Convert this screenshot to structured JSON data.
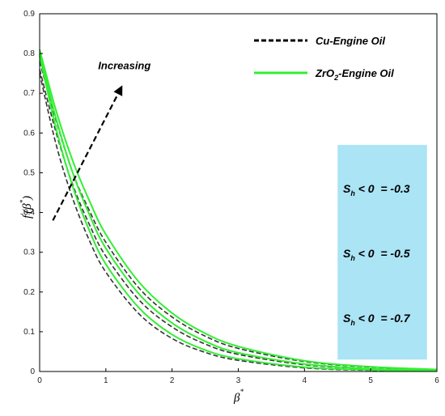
{
  "chart_data": {
    "type": "line",
    "x_range": [
      0,
      6
    ],
    "y_range": [
      0,
      0.9
    ],
    "x_ticks": [
      "0",
      "1",
      "2",
      "3",
      "4",
      "5",
      "6"
    ],
    "y_ticks": [
      "0",
      "0.1",
      "0.2",
      "0.3",
      "0.4",
      "0.5",
      "0.6",
      "0.7",
      "0.8",
      "0.9"
    ],
    "xlabel": "β",
    "xlabel_sup": "*",
    "ylabel": "f",
    "ylabel_prime": "'",
    "ylabel_open": "(β",
    "ylabel_sup": "*",
    "ylabel_close": ")",
    "grid": false,
    "legend": {
      "placement": "top-right",
      "entries": [
        {
          "label": "Cu-Engine Oil",
          "style": "dashed",
          "color": "#000000"
        },
        {
          "label_main": "ZrO",
          "label_sub": "2",
          "label_rest": "-Engine Oil",
          "style": "solid",
          "color": "#33ee33"
        }
      ]
    },
    "series": [
      {
        "group": "Cu-Engine Oil",
        "color": "#333333",
        "dash": true,
        "x": [
          0,
          0.25,
          0.5,
          0.75,
          1,
          1.5,
          2,
          2.5,
          3,
          4,
          5,
          6
        ],
        "y": [
          0.75,
          0.57,
          0.435,
          0.33,
          0.25,
          0.145,
          0.083,
          0.048,
          0.028,
          0.009,
          0.003,
          0.001
        ]
      },
      {
        "group": "Cu-Engine Oil",
        "color": "#333333",
        "dash": true,
        "x": [
          0,
          0.25,
          0.5,
          0.75,
          1,
          1.5,
          2,
          2.5,
          3,
          4,
          5,
          6
        ],
        "y": [
          0.76,
          0.6,
          0.47,
          0.37,
          0.29,
          0.18,
          0.112,
          0.069,
          0.043,
          0.017,
          0.007,
          0.003
        ]
      },
      {
        "group": "Cu-Engine Oil",
        "color": "#333333",
        "dash": true,
        "x": [
          0,
          0.25,
          0.5,
          0.75,
          1,
          1.5,
          2,
          2.5,
          3,
          4,
          5,
          6
        ],
        "y": [
          0.78,
          0.63,
          0.5,
          0.405,
          0.325,
          0.21,
          0.137,
          0.089,
          0.058,
          0.025,
          0.011,
          0.005
        ]
      },
      {
        "group": "ZrO2-Engine Oil",
        "color": "#33ee33",
        "dash": false,
        "x": [
          0,
          0.25,
          0.5,
          0.75,
          1,
          1.5,
          2,
          2.5,
          3,
          4,
          5,
          6
        ],
        "y": [
          0.795,
          0.61,
          0.465,
          0.355,
          0.27,
          0.16,
          0.093,
          0.054,
          0.032,
          0.011,
          0.004,
          0.001
        ]
      },
      {
        "group": "ZrO2-Engine Oil",
        "color": "#33ee33",
        "dash": false,
        "x": [
          0,
          0.25,
          0.5,
          0.75,
          1,
          1.5,
          2,
          2.5,
          3,
          4,
          5,
          6
        ],
        "y": [
          0.8,
          0.635,
          0.5,
          0.395,
          0.31,
          0.195,
          0.122,
          0.076,
          0.047,
          0.019,
          0.007,
          0.003
        ]
      },
      {
        "group": "ZrO2-Engine Oil",
        "color": "#33ee33",
        "dash": false,
        "x": [
          0,
          0.25,
          0.5,
          0.75,
          1,
          1.5,
          2,
          2.5,
          3,
          4,
          5,
          6
        ],
        "y": [
          0.81,
          0.655,
          0.53,
          0.43,
          0.345,
          0.225,
          0.147,
          0.096,
          0.063,
          0.027,
          0.012,
          0.005
        ]
      }
    ],
    "annotation": {
      "text": "Increasing",
      "arrow_from": [
        0.2,
        0.38
      ],
      "arrow_to": [
        1.25,
        0.72
      ]
    },
    "box": {
      "color": "#aae4f5",
      "x_range": [
        4.5,
        5.85
      ],
      "y_range": [
        0.03,
        0.57
      ],
      "lines": [
        {
          "s": "S",
          "sub": "h",
          "rest": " < 0  = -0.3"
        },
        {
          "s": "S",
          "sub": "h",
          "rest": " < 0  = -0.5"
        },
        {
          "s": "S",
          "sub": "h",
          "rest": " < 0  = -0.7"
        }
      ]
    }
  }
}
